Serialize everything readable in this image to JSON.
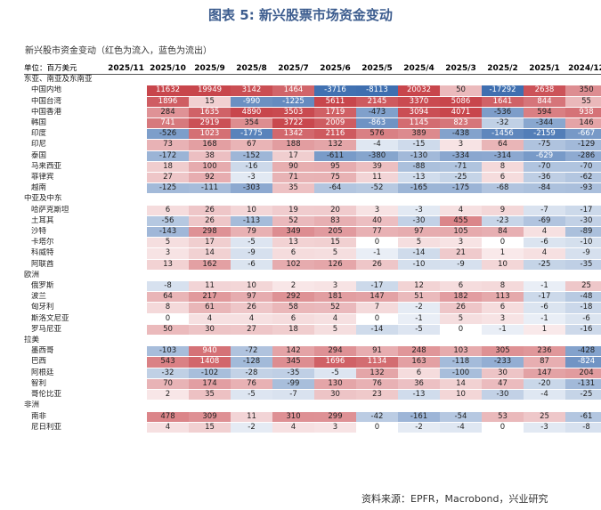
{
  "title": "图表 5:  新兴股票市场资金变动",
  "subtitle": "新兴股市资金变动（红色为流入，蓝色为流出）",
  "source": "资料来源：EPFR，Macrobond，兴业研究",
  "chart_data": {
    "type": "heatmap",
    "title": "新兴股票市场资金变动",
    "unit_label": "单位：百万美元",
    "columns": [
      "2025/11",
      "2025/10",
      "2025/9",
      "2025/8",
      "2025/7",
      "2025/6",
      "2025/5",
      "2025/4",
      "2025/3",
      "2025/2",
      "2025/1",
      "2024/12"
    ],
    "color_positive": "#c8464c",
    "color_negative": "#3f6fb0",
    "rows": [
      {
        "label": "东亚、南亚及东南亚",
        "group": true
      },
      {
        "label": "中国内地",
        "values": [
          null,
          11632,
          19949,
          3142,
          1464,
          -3716,
          -8113,
          20032,
          50,
          -17292,
          2638,
          350
        ]
      },
      {
        "label": "中国台湾",
        "values": [
          null,
          1896,
          15,
          -990,
          -1225,
          5611,
          2145,
          3370,
          5086,
          1641,
          844,
          55
        ]
      },
      {
        "label": "中国香港",
        "values": [
          null,
          284,
          1635,
          4890,
          3503,
          1719,
          -473,
          3094,
          4071,
          -536,
          594,
          938
        ]
      },
      {
        "label": "韩国",
        "values": [
          null,
          741,
          2919,
          354,
          3722,
          2009,
          -863,
          1145,
          823,
          -32,
          -344,
          146
        ]
      },
      {
        "label": "印度",
        "values": [
          null,
          -526,
          1023,
          -1775,
          1342,
          2116,
          576,
          389,
          -438,
          -1456,
          -2159,
          -667
        ]
      },
      {
        "label": "印尼",
        "values": [
          null,
          73,
          168,
          67,
          188,
          132,
          -4,
          -15,
          3,
          64,
          -75,
          -129
        ]
      },
      {
        "label": "泰国",
        "values": [
          null,
          -172,
          38,
          -152,
          17,
          -611,
          -380,
          -130,
          -334,
          -314,
          -629,
          -286
        ]
      },
      {
        "label": "马来西亚",
        "values": [
          null,
          18,
          100,
          -16,
          90,
          95,
          39,
          -88,
          -71,
          8,
          -70,
          -70
        ]
      },
      {
        "label": "菲律宾",
        "values": [
          null,
          27,
          92,
          -3,
          71,
          75,
          11,
          -13,
          -25,
          6,
          -36,
          -62
        ]
      },
      {
        "label": "越南",
        "values": [
          null,
          -125,
          -111,
          -303,
          35,
          -64,
          -52,
          -165,
          -175,
          -68,
          -84,
          -93
        ]
      },
      {
        "label": "中亚及中东",
        "group": true
      },
      {
        "label": "哈萨克斯坦",
        "values": [
          null,
          6,
          26,
          10,
          19,
          20,
          3,
          -3,
          4,
          9,
          -7,
          -17
        ]
      },
      {
        "label": "土耳其",
        "values": [
          null,
          -56,
          26,
          -113,
          52,
          83,
          40,
          -30,
          455,
          -23,
          -69,
          -30
        ]
      },
      {
        "label": "沙特",
        "values": [
          null,
          -143,
          298,
          79,
          349,
          205,
          77,
          97,
          105,
          84,
          4,
          -89
        ]
      },
      {
        "label": "卡塔尔",
        "values": [
          null,
          5,
          17,
          -5,
          13,
          15,
          0,
          5,
          3,
          0,
          -6,
          -10
        ]
      },
      {
        "label": "科威特",
        "values": [
          null,
          3,
          14,
          -9,
          6,
          5,
          -1,
          -14,
          21,
          1,
          4,
          -9
        ]
      },
      {
        "label": "阿联酋",
        "values": [
          null,
          13,
          162,
          -6,
          102,
          126,
          26,
          -10,
          -9,
          10,
          -25,
          -35
        ]
      },
      {
        "label": "欧洲",
        "group": true
      },
      {
        "label": "俄罗斯",
        "values": [
          null,
          -8,
          11,
          10,
          2,
          3,
          -17,
          12,
          6,
          8,
          -1,
          25
        ]
      },
      {
        "label": "波兰",
        "values": [
          null,
          64,
          217,
          97,
          292,
          181,
          147,
          51,
          182,
          113,
          -17,
          -48
        ]
      },
      {
        "label": "匈牙利",
        "values": [
          null,
          8,
          61,
          26,
          58,
          52,
          7,
          -2,
          26,
          6,
          -6,
          -18
        ]
      },
      {
        "label": "斯洛文尼亚",
        "values": [
          null,
          0,
          4,
          4,
          6,
          4,
          0,
          -1,
          5,
          3,
          -1,
          -6
        ]
      },
      {
        "label": "罗马尼亚",
        "values": [
          null,
          50,
          30,
          27,
          18,
          5,
          -14,
          -5,
          0,
          -1,
          1,
          -16
        ]
      },
      {
        "label": "拉美",
        "group": true
      },
      {
        "label": "墨西哥",
        "values": [
          null,
          -103,
          940,
          -72,
          142,
          294,
          91,
          248,
          103,
          305,
          236,
          -428
        ]
      },
      {
        "label": "巴西",
        "values": [
          null,
          543,
          1408,
          -128,
          345,
          1696,
          1134,
          163,
          -118,
          -233,
          87,
          -824
        ]
      },
      {
        "label": "阿根廷",
        "values": [
          null,
          -32,
          -102,
          -28,
          -35,
          -5,
          132,
          6,
          -100,
          30,
          147,
          204
        ]
      },
      {
        "label": "智利",
        "values": [
          null,
          70,
          174,
          76,
          -99,
          130,
          76,
          36,
          14,
          47,
          -20,
          -131
        ]
      },
      {
        "label": "哥伦比亚",
        "values": [
          null,
          2,
          35,
          -5,
          -7,
          30,
          23,
          -13,
          10,
          -30,
          -4,
          -25
        ]
      },
      {
        "label": "非洲",
        "group": true
      },
      {
        "label": "南非",
        "values": [
          null,
          478,
          309,
          11,
          310,
          299,
          -42,
          -161,
          -54,
          53,
          25,
          -61
        ]
      },
      {
        "label": "尼日利亚",
        "values": [
          null,
          4,
          15,
          -2,
          4,
          3,
          0,
          -2,
          -4,
          0,
          -3,
          -8
        ]
      }
    ]
  }
}
